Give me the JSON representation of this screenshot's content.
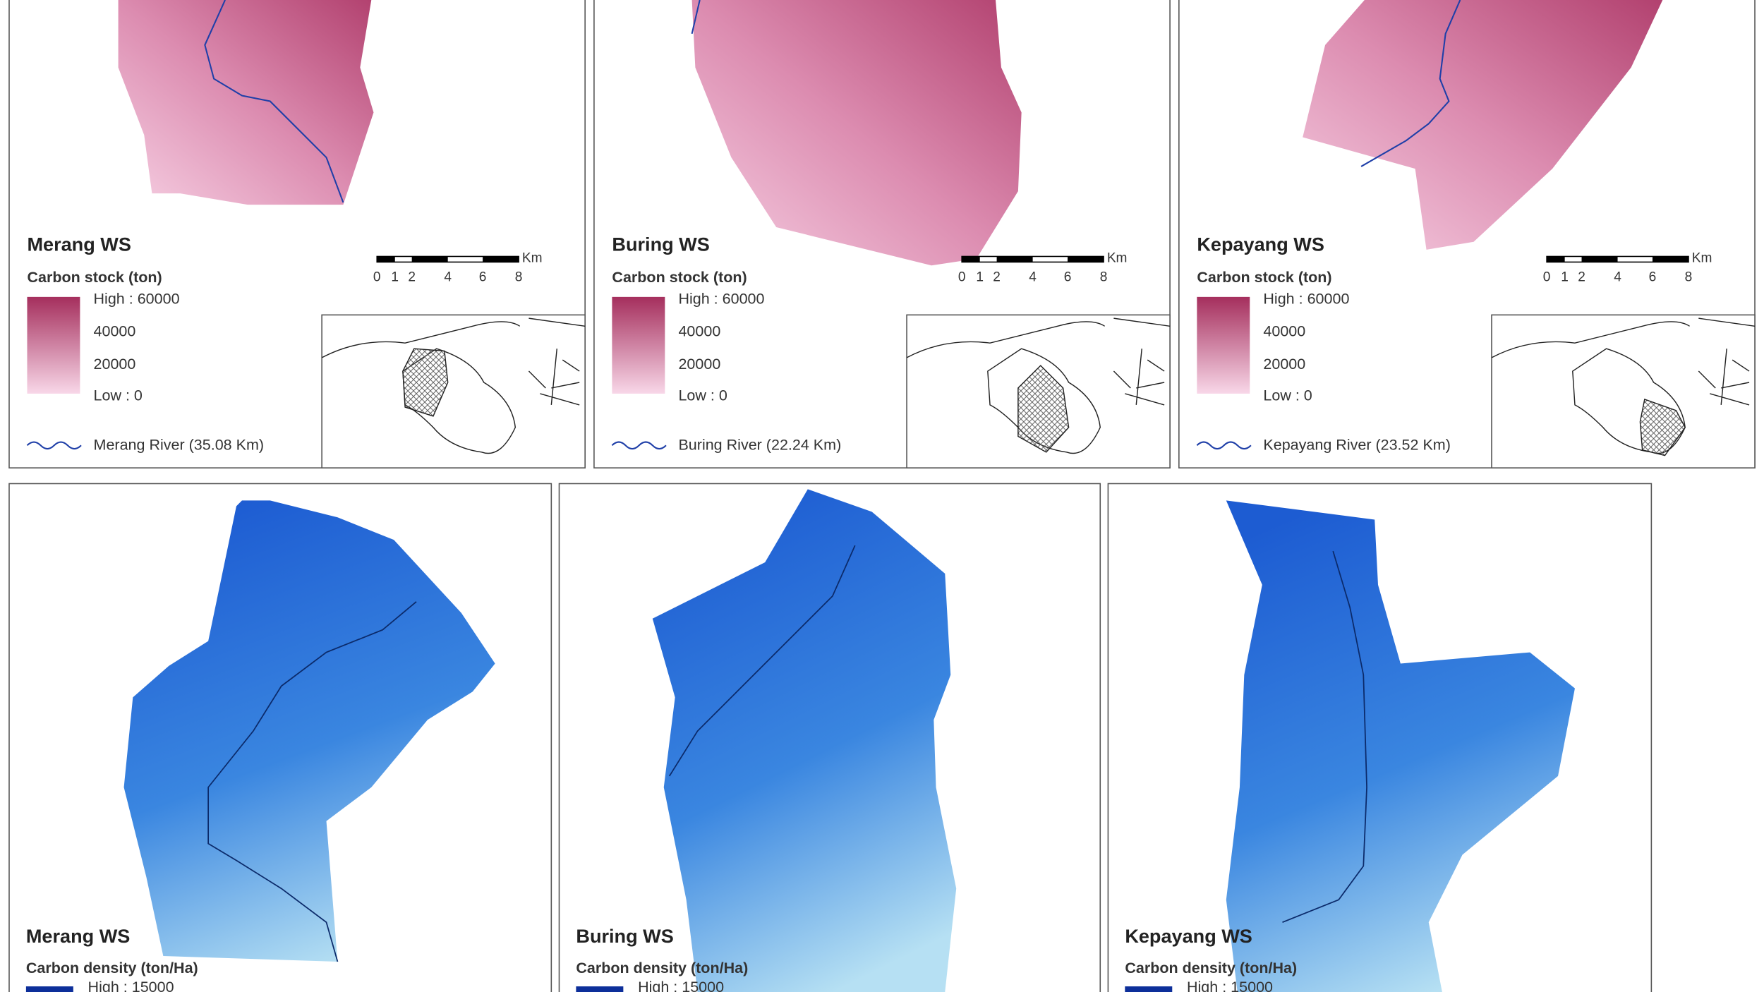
{
  "top_panels": [
    {
      "title": "Merang WS",
      "legend_title": "Carbon stock (ton)",
      "legend_labels": [
        "High : 60000",
        "40000",
        "20000",
        "Low : 0"
      ],
      "river": "Merang River (35.08 Km)",
      "scale_unit": "Km",
      "scale_ticks": [
        "0",
        "1",
        "2",
        "4",
        "6",
        "8"
      ]
    },
    {
      "title": "Buring WS",
      "legend_title": "Carbon stock (ton)",
      "legend_labels": [
        "High : 60000",
        "40000",
        "20000",
        "Low : 0"
      ],
      "river": "Buring River (22.24 Km)",
      "scale_unit": "Km",
      "scale_ticks": [
        "0",
        "1",
        "2",
        "4",
        "6",
        "8"
      ]
    },
    {
      "title": "Kepayang WS",
      "legend_title": "Carbon stock (ton)",
      "legend_labels": [
        "High : 60000",
        "40000",
        "20000",
        "Low : 0"
      ],
      "river": "Kepayang River (23.52 Km)",
      "scale_unit": "Km",
      "scale_ticks": [
        "0",
        "1",
        "2",
        "4",
        "6",
        "8"
      ]
    }
  ],
  "bottom_panels": [
    {
      "title": "Merang WS",
      "legend_title": "Carbon density (ton/Ha)",
      "legend_label": "High : 15000"
    },
    {
      "title": "Buring WS",
      "legend_title": "Carbon density (ton/Ha)",
      "legend_label": "High : 15000"
    },
    {
      "title": "Kepayang WS",
      "legend_title": "Carbon density (ton/Ha)",
      "legend_label": "High : 15000"
    }
  ]
}
